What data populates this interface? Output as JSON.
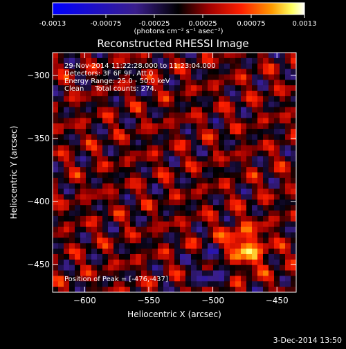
{
  "chart_data": {
    "type": "heatmap",
    "title": "Reconstructed RHESSI Image",
    "xlabel": "Heliocentric X (arcsec)",
    "ylabel": "Heliocentric Y (arcsec)",
    "xlim": [
      -625,
      -435
    ],
    "ylim": [
      -472,
      -282
    ],
    "x_ticks": [
      -600,
      -550,
      -500,
      -450
    ],
    "y_ticks": [
      -300,
      -350,
      -400,
      -450
    ],
    "colorbar": {
      "ticks": [
        "-0.0013",
        "-0.00075",
        "-0.00025",
        "0.00025",
        "0.00075",
        "0.0013"
      ],
      "range": [
        -0.0013,
        0.0013
      ],
      "unit_label": "(photons cm⁻² s⁻¹ asec⁻²)"
    },
    "annotations": [
      "29-Nov-2014 11:22:28.000 to 11:23:04.000",
      "Detectors: 3F 6F 9F, Att 0",
      "Energy Range: 25.0 - 50.0 keV",
      "Clean     Total counts: 274."
    ],
    "peak_label": "Position of Peak = [-476,-437]",
    "peak": [
      -476,
      -437
    ],
    "peak_value": 0.0013
  },
  "footer": {
    "date": "3-Dec-2014 13:50"
  }
}
